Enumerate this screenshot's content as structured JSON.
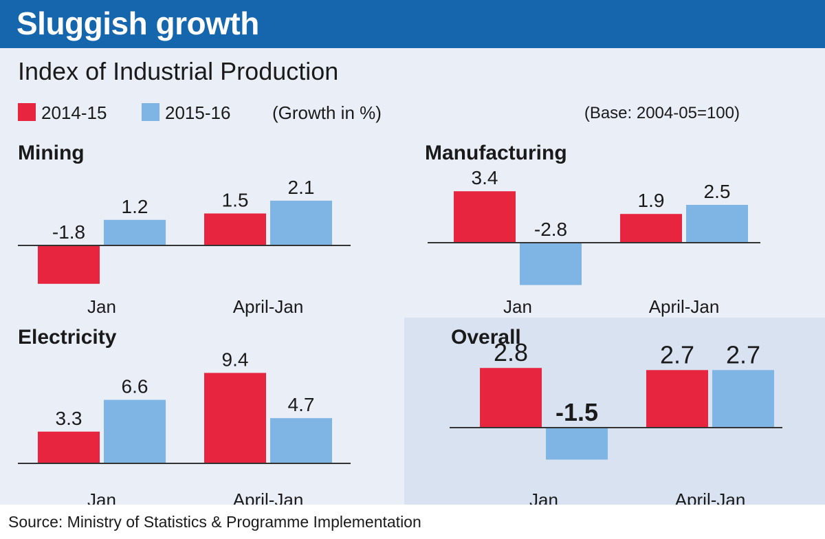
{
  "header": {
    "title": "Sluggish growth"
  },
  "subtitle": "Index of Industrial Production",
  "legend": {
    "items": [
      {
        "label": "2014-15",
        "color": "#e8253f"
      },
      {
        "label": "2015-16",
        "color": "#7fb5e4"
      }
    ],
    "unit_note": "(Growth in %)",
    "base_note": "(Base: 2004-05=100)"
  },
  "chart_data": [
    {
      "type": "bar",
      "title": "Mining",
      "categories": [
        "Jan",
        "April-Jan"
      ],
      "series": [
        {
          "name": "2014-15",
          "values": [
            -1.8,
            1.5
          ]
        },
        {
          "name": "2015-16",
          "values": [
            1.2,
            2.1
          ]
        }
      ],
      "labels": [
        [
          "-1.8",
          "1.5"
        ],
        [
          "1.2",
          "2.1"
        ]
      ],
      "ylim": [
        -1.8,
        2.1
      ]
    },
    {
      "type": "bar",
      "title": "Manufacturing",
      "categories": [
        "Jan",
        "April-Jan"
      ],
      "series": [
        {
          "name": "2014-15",
          "values": [
            3.4,
            1.9
          ]
        },
        {
          "name": "2015-16",
          "values": [
            -2.8,
            2.5
          ]
        }
      ],
      "labels": [
        [
          "3.4",
          "1.9"
        ],
        [
          "-2.8",
          "2.5"
        ]
      ],
      "ylim": [
        -2.8,
        3.4
      ]
    },
    {
      "type": "bar",
      "title": "Electricity",
      "categories": [
        "Jan",
        "April-Jan"
      ],
      "series": [
        {
          "name": "2014-15",
          "values": [
            3.3,
            9.4
          ]
        },
        {
          "name": "2015-16",
          "values": [
            6.6,
            4.7
          ]
        }
      ],
      "labels": [
        [
          "3.3",
          "9.4"
        ],
        [
          "6.6",
          "4.7"
        ]
      ],
      "ylim": [
        0,
        9.4
      ]
    },
    {
      "type": "bar",
      "title": "Overall",
      "categories": [
        "Jan",
        "April-Jan"
      ],
      "series": [
        {
          "name": "2014-15",
          "values": [
            2.8,
            2.7
          ]
        },
        {
          "name": "2015-16",
          "values": [
            -1.5,
            2.7
          ]
        }
      ],
      "labels": [
        [
          "2.8",
          "2.7"
        ],
        [
          "-1.5",
          "2.7"
        ]
      ],
      "ylim": [
        -1.5,
        2.8
      ]
    }
  ],
  "footer": {
    "source": "Source: Ministry of Statistics & Programme Implementation"
  }
}
